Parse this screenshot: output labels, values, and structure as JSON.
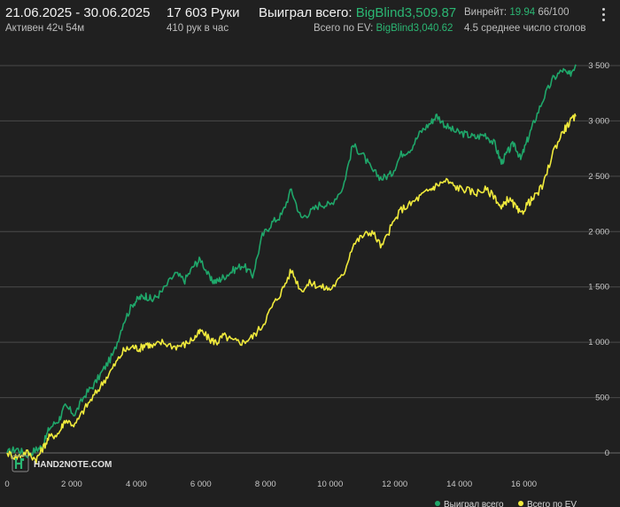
{
  "header": {
    "date_range": "21.06.2025 - 30.06.2025",
    "active_time": "Активен 42ч 54м",
    "hands": "17 603 Руки",
    "hands_per_hour": "410 рук в час",
    "won_label": "Выиграл всего:",
    "won_value": "BigBlind3,509.87",
    "ev_label": "Всего по EV:",
    "ev_value": "BigBlind3,040.62",
    "winrate_label": "Винрейт:",
    "winrate_value": "19.94",
    "winrate_unit": "66/100",
    "avg_tables": "4.5 среднее число столов"
  },
  "logo": {
    "text": "HAND2NOTE.COM"
  },
  "colors": {
    "won": "#1fa76a",
    "ev": "#f0ea3c",
    "background": "#202020",
    "grid": "#4a4a4a"
  },
  "chart_data": {
    "type": "line",
    "x_ticks": [
      "0",
      "2 000",
      "4 000",
      "6 000",
      "8 000",
      "10 000",
      "12 000",
      "14 000",
      "16 000"
    ],
    "y_ticks": [
      "0",
      "500",
      "1 000",
      "1 500",
      "2 000",
      "2 500",
      "3 000",
      "3 500"
    ],
    "xlim": [
      0,
      17603
    ],
    "ylim": [
      0,
      3500
    ],
    "grid": true,
    "legend_position": "bottom-right",
    "series": [
      {
        "name": "Выиграл всего",
        "color": "#1fa76a",
        "x": [
          0,
          300,
          600,
          900,
          1100,
          1300,
          1600,
          1800,
          2100,
          2400,
          2700,
          3000,
          3300,
          3600,
          3900,
          4100,
          4300,
          4500,
          4800,
          5200,
          5500,
          5800,
          6000,
          6300,
          6500,
          6700,
          7000,
          7300,
          7600,
          7900,
          8200,
          8500,
          8800,
          9100,
          9400,
          9700,
          10000,
          10400,
          10700,
          11000,
          11300,
          11600,
          11900,
          12200,
          12500,
          12800,
          13100,
          13300,
          13600,
          13900,
          14200,
          14500,
          14800,
          15100,
          15300,
          15500,
          15700,
          15900,
          16100,
          16300,
          16600,
          16900,
          17200,
          17400,
          17603
        ],
        "y": [
          0,
          40,
          -20,
          30,
          60,
          220,
          300,
          420,
          350,
          520,
          620,
          760,
          900,
          1180,
          1350,
          1400,
          1420,
          1380,
          1460,
          1620,
          1560,
          1700,
          1750,
          1560,
          1550,
          1590,
          1650,
          1700,
          1600,
          1960,
          2080,
          2150,
          2380,
          2120,
          2180,
          2250,
          2240,
          2400,
          2780,
          2700,
          2550,
          2480,
          2520,
          2700,
          2750,
          2900,
          2980,
          3050,
          2950,
          2900,
          2880,
          2850,
          2880,
          2790,
          2620,
          2720,
          2800,
          2650,
          2820,
          2980,
          3200,
          3380,
          3460,
          3410,
          3510
        ]
      },
      {
        "name": "Всего по EV",
        "color": "#f0ea3c",
        "x": [
          0,
          300,
          600,
          900,
          1100,
          1300,
          1600,
          1800,
          2100,
          2400,
          2700,
          3000,
          3300,
          3600,
          3900,
          4100,
          4300,
          4500,
          4800,
          5200,
          5500,
          5800,
          6000,
          6300,
          6500,
          6700,
          7000,
          7300,
          7600,
          7900,
          8200,
          8500,
          8800,
          9100,
          9400,
          9700,
          10000,
          10400,
          10700,
          11000,
          11300,
          11600,
          11900,
          12200,
          12500,
          12800,
          13100,
          13300,
          13600,
          13900,
          14200,
          14500,
          14800,
          15100,
          15300,
          15500,
          15700,
          15900,
          16100,
          16300,
          16600,
          16900,
          17200,
          17400,
          17603
        ],
        "y": [
          0,
          -40,
          10,
          -60,
          40,
          140,
          180,
          300,
          250,
          400,
          520,
          650,
          780,
          920,
          960,
          940,
          990,
          960,
          1000,
          960,
          980,
          1040,
          1100,
          1020,
          1000,
          1060,
          1010,
          1000,
          1050,
          1150,
          1320,
          1460,
          1650,
          1470,
          1540,
          1500,
          1480,
          1600,
          1880,
          1960,
          2000,
          1860,
          2050,
          2200,
          2250,
          2320,
          2380,
          2420,
          2460,
          2400,
          2380,
          2350,
          2380,
          2320,
          2200,
          2300,
          2240,
          2150,
          2250,
          2300,
          2420,
          2720,
          2900,
          2980,
          3040
        ]
      }
    ]
  }
}
